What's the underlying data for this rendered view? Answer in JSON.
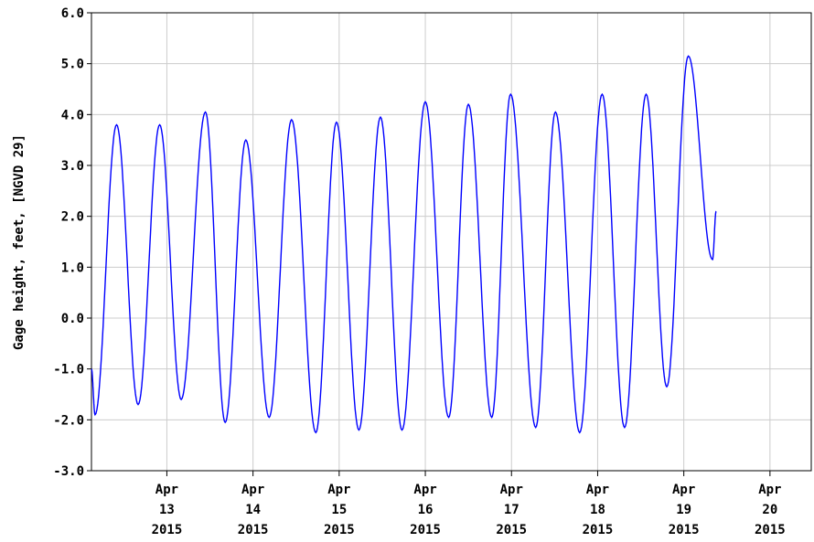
{
  "chart_data": {
    "type": "line",
    "ylabel": "Gage height, feet, [NGVD 29]",
    "ylim": [
      -3.0,
      6.0
    ],
    "yticks": [
      "6.0",
      "5.0",
      "4.0",
      "3.0",
      "2.0",
      "1.0",
      "0.0",
      "-1.0",
      "-2.0",
      "-3.0"
    ],
    "xlim": [
      "2015-04-12 03:00",
      "2015-04-20 11:30"
    ],
    "xticks": [
      {
        "month": "Apr",
        "day": "13",
        "year": "2015"
      },
      {
        "month": "Apr",
        "day": "14",
        "year": "2015"
      },
      {
        "month": "Apr",
        "day": "15",
        "year": "2015"
      },
      {
        "month": "Apr",
        "day": "16",
        "year": "2015"
      },
      {
        "month": "Apr",
        "day": "17",
        "year": "2015"
      },
      {
        "month": "Apr",
        "day": "18",
        "year": "2015"
      },
      {
        "month": "Apr",
        "day": "19",
        "year": "2015"
      },
      {
        "month": "Apr",
        "day": "20",
        "year": "2015"
      }
    ],
    "grid": true,
    "series": [
      {
        "color": "#0000ff",
        "points": [
          [
            "2015-04-12 03:00",
            -1.0
          ],
          [
            "2015-04-12 04:00",
            -1.9
          ],
          [
            "2015-04-12 10:00",
            3.8
          ],
          [
            "2015-04-12 16:00",
            -1.7
          ],
          [
            "2015-04-12 22:00",
            3.8
          ],
          [
            "2015-04-13 04:00",
            -1.6
          ],
          [
            "2015-04-13 10:45",
            4.05
          ],
          [
            "2015-04-13 16:15",
            -2.05
          ],
          [
            "2015-04-13 22:00",
            3.5
          ],
          [
            "2015-04-14 04:30",
            -1.95
          ],
          [
            "2015-04-14 10:45",
            3.9
          ],
          [
            "2015-04-14 17:30",
            -2.25
          ],
          [
            "2015-04-14 23:15",
            3.85
          ],
          [
            "2015-04-15 05:30",
            -2.2
          ],
          [
            "2015-04-15 11:30",
            3.95
          ],
          [
            "2015-04-15 17:30",
            -2.2
          ],
          [
            "2015-04-16 00:00",
            4.25
          ],
          [
            "2015-04-16 06:30",
            -1.95
          ],
          [
            "2015-04-16 12:00",
            4.2
          ],
          [
            "2015-04-16 18:30",
            -1.95
          ],
          [
            "2015-04-16 23:45",
            4.4
          ],
          [
            "2015-04-17 06:45",
            -2.15
          ],
          [
            "2015-04-17 12:15",
            4.05
          ],
          [
            "2015-04-17 19:00",
            -2.25
          ],
          [
            "2015-04-18 01:15",
            4.4
          ],
          [
            "2015-04-18 07:30",
            -2.15
          ],
          [
            "2015-04-18 13:30",
            4.4
          ],
          [
            "2015-04-18 19:15",
            -1.35
          ],
          [
            "2015-04-19 01:15",
            5.15
          ],
          [
            "2015-04-19 08:00",
            1.15
          ],
          [
            "2015-04-19 09:00",
            2.1
          ]
        ]
      }
    ]
  }
}
